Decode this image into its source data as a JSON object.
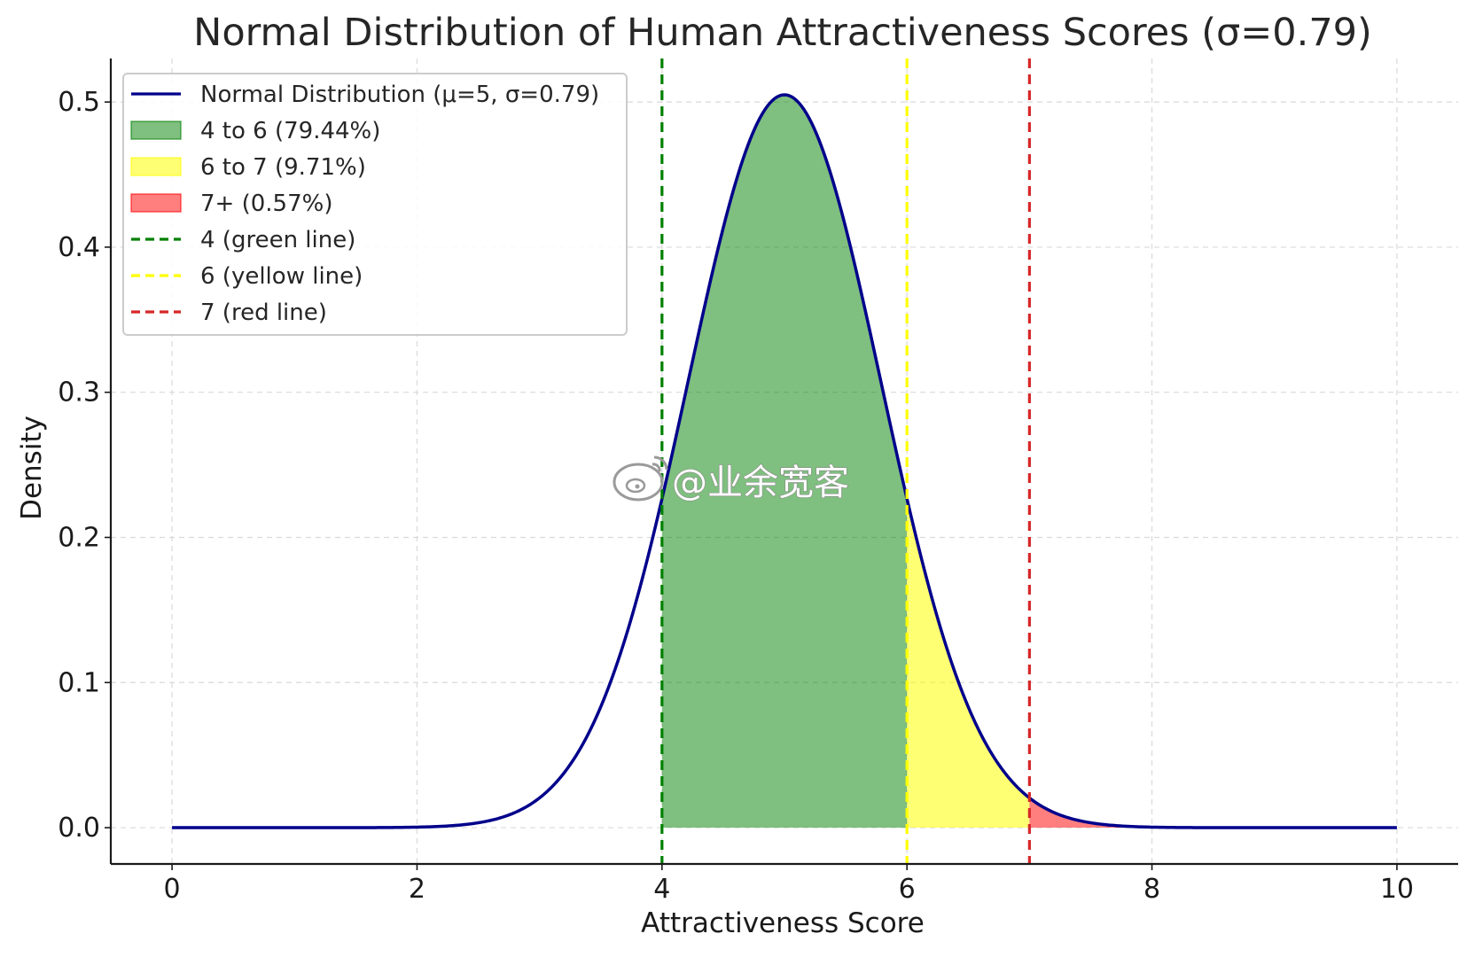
{
  "chart_data": {
    "type": "line",
    "title": "Normal Distribution of Human Attractiveness Scores (σ=0.79)",
    "xlabel": "Attractiveness Score",
    "ylabel": "Density",
    "xlim": [
      -0.5,
      10.5
    ],
    "ylim": [
      -0.025,
      0.53
    ],
    "x_ticks": [
      0,
      2,
      4,
      6,
      8,
      10
    ],
    "x_tick_labels": [
      "0",
      "2",
      "4",
      "6",
      "8",
      "10"
    ],
    "y_ticks": [
      0.0,
      0.1,
      0.2,
      0.3,
      0.4,
      0.5
    ],
    "y_tick_labels": [
      "0.0",
      "0.1",
      "0.2",
      "0.3",
      "0.4",
      "0.5"
    ],
    "grid": true,
    "legend_placement": "top-left",
    "series": [
      {
        "name": "Normal Distribution (μ=5, σ=0.79)",
        "kind": "normal_pdf",
        "mu": 5,
        "sigma": 0.79,
        "x_range": [
          0,
          10
        ],
        "color": "#00008b"
      }
    ],
    "shaded_regions": [
      {
        "name": "4 to 6 (79.44%)",
        "from": 4,
        "to": 6,
        "color": "#008000",
        "opacity": 0.5
      },
      {
        "name": "6 to 7 (9.71%)",
        "from": 6,
        "to": 7,
        "color": "#ffff00",
        "opacity": 0.55
      },
      {
        "name": "7+ (0.57%)",
        "from": 7,
        "to": 10,
        "color": "#ff0000",
        "opacity": 0.5
      }
    ],
    "vertical_lines": [
      {
        "name": "4 (green line)",
        "x": 4,
        "color": "#008000"
      },
      {
        "name": "6 (yellow line)",
        "x": 6,
        "color": "#ffff00"
      },
      {
        "name": "7 (red line)",
        "x": 7,
        "color": "#d62728"
      }
    ]
  },
  "watermark": {
    "text": "@业余宽客"
  }
}
